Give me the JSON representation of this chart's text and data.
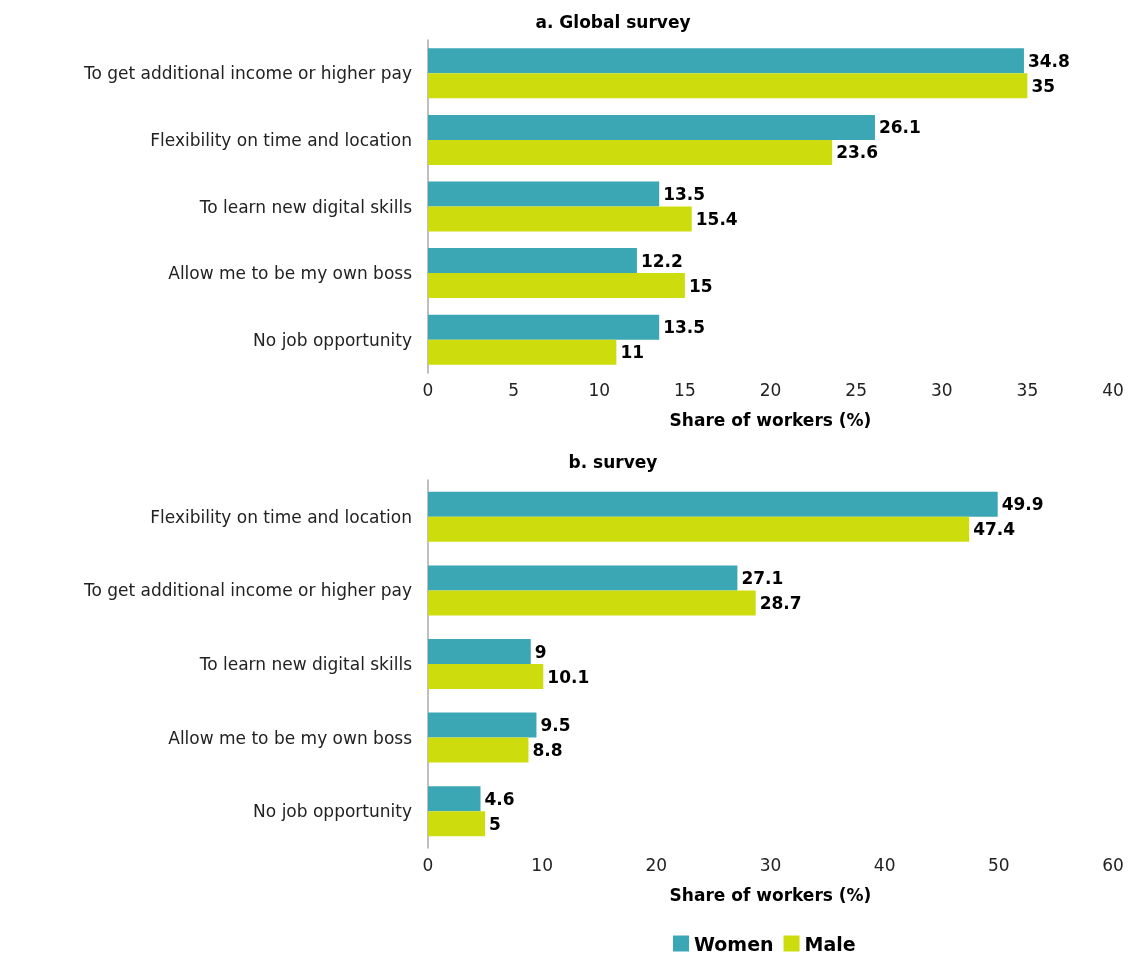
{
  "chart_data": [
    {
      "type": "bar",
      "orientation": "horizontal",
      "title": "a. Global survey",
      "xlabel": "Share of workers (%)",
      "categories": [
        "To get additional income or higher pay",
        "Flexibility on time and location",
        "To learn new digital skills",
        "Allow me to be my own boss",
        "No job opportunity"
      ],
      "series": [
        {
          "color": "#3ba6b4",
          "values": [
            34.8,
            26.1,
            13.5,
            12.2,
            13.5
          ]
        },
        {
          "color": "#cddc0c",
          "values": [
            35,
            23.6,
            15.4,
            15,
            11
          ]
        }
      ],
      "xlim": [
        0,
        40
      ],
      "xticks": [
        0,
        5,
        10,
        15,
        20,
        25,
        30,
        35,
        40
      ],
      "data_labels": true,
      "grid": false,
      "legend": false
    },
    {
      "type": "bar",
      "orientation": "horizontal",
      "title": "b. survey",
      "xlabel": "Share of workers (%)",
      "categories": [
        "Flexibility on time and location",
        "To get additional income or higher pay",
        "To learn new digital skills",
        "Allow me to be my own boss",
        "No job opportunity"
      ],
      "series": [
        {
          "name": "Women",
          "color": "#3ba6b4",
          "values": [
            49.9,
            27.1,
            9,
            9.5,
            4.6
          ]
        },
        {
          "name": "Male",
          "color": "#cddc0c",
          "values": [
            47.4,
            28.7,
            10.1,
            8.8,
            5
          ]
        }
      ],
      "xlim": [
        0,
        60
      ],
      "xticks": [
        0,
        10,
        20,
        30,
        40,
        50,
        60
      ],
      "data_labels": true,
      "grid": false,
      "legend": "bottom"
    }
  ]
}
